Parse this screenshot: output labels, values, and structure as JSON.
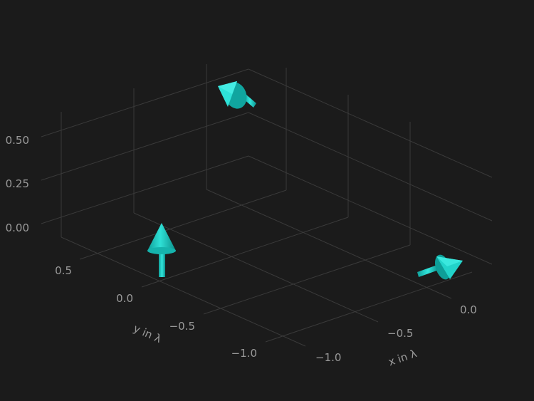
{
  "chart_data": {
    "type": "3d-arrows",
    "title": "",
    "xlabel": "x in λ",
    "ylabel": "y in λ",
    "zlabel": "",
    "x_ticks": [
      "−1.0",
      "−0.5",
      "0.0"
    ],
    "y_ticks": [
      "−1.0",
      "−0.5",
      "0.0",
      "0.5"
    ],
    "z_ticks": [
      "0.00",
      "0.25",
      "0.50"
    ],
    "xlim": [
      -1.2,
      0.2
    ],
    "ylim": [
      -1.2,
      0.8
    ],
    "zlim": [
      -0.1,
      0.7
    ],
    "grid": true,
    "arrow_color": "#1ec8c0",
    "arrows": [
      {
        "x": 0.0,
        "y": 0.0,
        "z": 0.0,
        "u": 0.0,
        "v": 0.0,
        "w": 1.0
      },
      {
        "x": 0.0,
        "y": -1.0,
        "z": 0.0,
        "u": 1.0,
        "v": 0.0,
        "w": 0.0
      },
      {
        "x": -1.0,
        "y": 0.0,
        "z": 0.0,
        "u": 0.0,
        "v": 1.0,
        "w": 0.0
      }
    ]
  }
}
